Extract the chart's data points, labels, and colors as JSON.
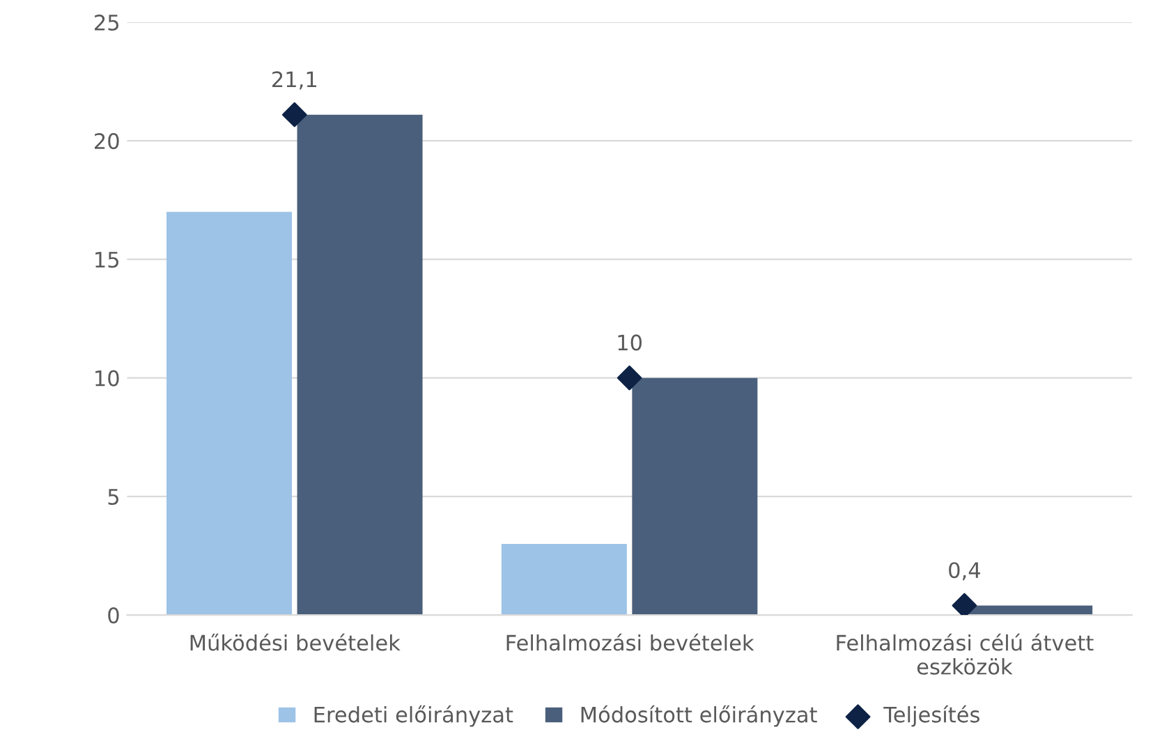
{
  "chart_data": {
    "type": "bar",
    "categories": [
      "Működési bevételek",
      "Felhalmozási bevételek",
      "Felhalmozási célú átvett\neszközök"
    ],
    "series": [
      {
        "name": "Eredeti előirányzat",
        "color": "#9dc3e6",
        "values": [
          17,
          3,
          null
        ]
      },
      {
        "name": "Módosított előirányzat",
        "color": "#4a5f7b",
        "values": [
          21.1,
          10,
          0.4
        ]
      },
      {
        "name": "Teljesítés",
        "type": "scatter",
        "color": "#0d2245",
        "x": [
          "Működési bevételek",
          "Felhalmozási bevételek",
          "Felhalmozási célú átvett\neszközök"
        ],
        "values": [
          21.1,
          10,
          0.4
        ],
        "value_labels": [
          "21,1",
          "10",
          "0,4"
        ],
        "marker": "diamond"
      }
    ],
    "ylim": [
      0,
      25
    ],
    "yticks": [
      0,
      5,
      10,
      15,
      20,
      25
    ],
    "grid": "y",
    "legend": "bottom"
  }
}
